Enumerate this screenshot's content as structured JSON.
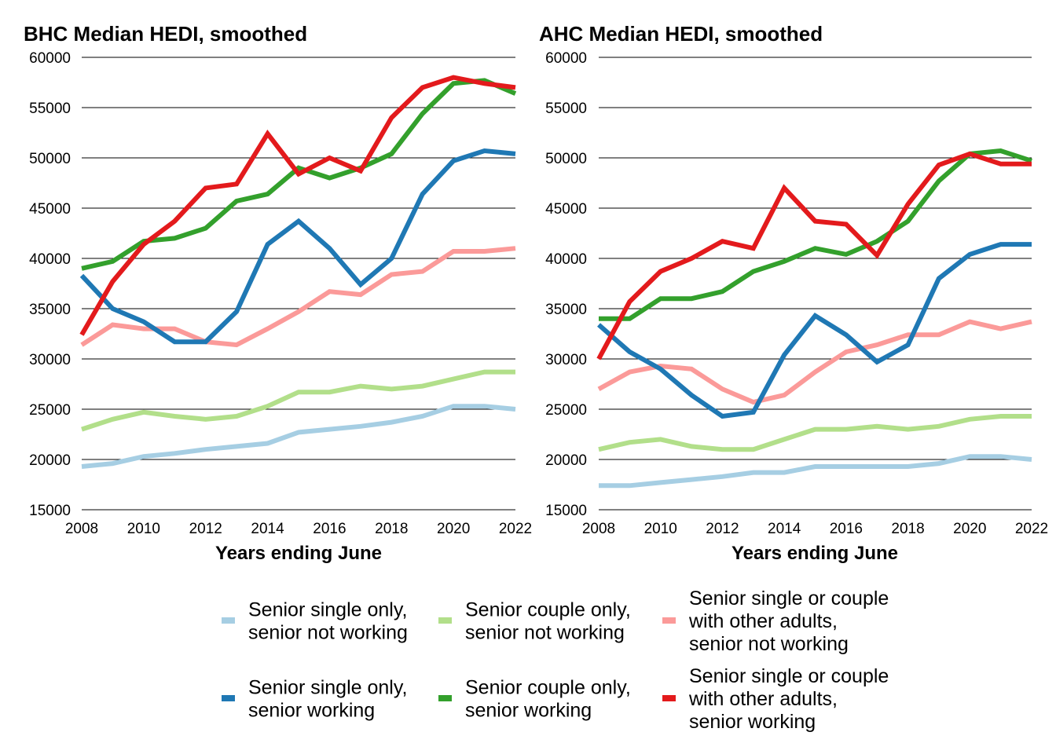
{
  "legend": [
    {
      "label_lines": [
        "Senior single only,",
        "senior not working"
      ],
      "color": "#a6cee3"
    },
    {
      "label_lines": [
        "Senior couple only,",
        "senior not working"
      ],
      "color": "#b2df8a"
    },
    {
      "label_lines": [
        "Senior single or couple",
        "with other adults,",
        "senior not working"
      ],
      "color": "#fb9a99"
    },
    {
      "label_lines": [
        "Senior single only,",
        "senior working"
      ],
      "color": "#1f78b4"
    },
    {
      "label_lines": [
        "Senior couple only,",
        "senior working"
      ],
      "color": "#33a02c"
    },
    {
      "label_lines": [
        "Senior single or couple",
        "with other adults,",
        "senior working"
      ],
      "color": "#e31a1c"
    }
  ],
  "chart_data": [
    {
      "type": "line",
      "title": "BHC Median HEDI, smoothed",
      "xlabel": "Years ending June",
      "ylabel": "",
      "xlim": [
        2008,
        2022
      ],
      "ylim": [
        15000,
        60000
      ],
      "x_ticks": [
        2008,
        2010,
        2012,
        2014,
        2016,
        2018,
        2020,
        2022
      ],
      "y_ticks": [
        15000,
        20000,
        25000,
        30000,
        35000,
        40000,
        45000,
        50000,
        55000,
        60000
      ],
      "grid": true,
      "x": [
        2008,
        2009,
        2010,
        2011,
        2012,
        2013,
        2014,
        2015,
        2016,
        2017,
        2018,
        2019,
        2020,
        2021,
        2022
      ],
      "series": [
        {
          "name": "Senior single only, senior not working",
          "color": "#a6cee3",
          "values": [
            19300,
            19600,
            20300,
            20600,
            21000,
            21300,
            21600,
            22700,
            23000,
            23300,
            23700,
            24300,
            25300,
            25300,
            25000
          ]
        },
        {
          "name": "Senior couple only, senior not working",
          "color": "#b2df8a",
          "values": [
            23000,
            24000,
            24700,
            24300,
            24000,
            24300,
            25300,
            26700,
            26700,
            27300,
            27000,
            27300,
            28000,
            28700,
            28700
          ]
        },
        {
          "name": "Senior single or couple with other adults, senior not working",
          "color": "#fb9a99",
          "values": [
            31400,
            33400,
            33000,
            33000,
            31700,
            31400,
            33000,
            34700,
            36700,
            36400,
            38400,
            38700,
            40700,
            40700,
            41000
          ]
        },
        {
          "name": "Senior single only, senior working",
          "color": "#1f78b4",
          "values": [
            38300,
            35000,
            33700,
            31700,
            31700,
            34700,
            41400,
            43700,
            41000,
            37400,
            40000,
            46400,
            49700,
            50700,
            50400
          ]
        },
        {
          "name": "Senior couple only, senior working",
          "color": "#33a02c",
          "values": [
            39000,
            39700,
            41700,
            42000,
            43000,
            45700,
            46400,
            49000,
            48000,
            49000,
            50400,
            54400,
            57400,
            57700,
            56400
          ]
        },
        {
          "name": "Senior single or couple with other adults, senior working",
          "color": "#e31a1c",
          "values": [
            32400,
            37700,
            41400,
            43700,
            47000,
            47400,
            52400,
            48400,
            50000,
            48700,
            54000,
            57000,
            58000,
            57400,
            57000
          ]
        }
      ]
    },
    {
      "type": "line",
      "title": "AHC Median HEDI, smoothed",
      "xlabel": "Years ending June",
      "ylabel": "",
      "xlim": [
        2008,
        2022
      ],
      "ylim": [
        15000,
        60000
      ],
      "x_ticks": [
        2008,
        2010,
        2012,
        2014,
        2016,
        2018,
        2020,
        2022
      ],
      "y_ticks": [
        15000,
        20000,
        25000,
        30000,
        35000,
        40000,
        45000,
        50000,
        55000,
        60000
      ],
      "grid": true,
      "x": [
        2008,
        2009,
        2010,
        2011,
        2012,
        2013,
        2014,
        2015,
        2016,
        2017,
        2018,
        2019,
        2020,
        2021,
        2022
      ],
      "series": [
        {
          "name": "Senior single only, senior not working",
          "color": "#a6cee3",
          "values": [
            17400,
            17400,
            17700,
            18000,
            18300,
            18700,
            18700,
            19300,
            19300,
            19300,
            19300,
            19600,
            20300,
            20300,
            20000
          ]
        },
        {
          "name": "Senior couple only, senior not working",
          "color": "#b2df8a",
          "values": [
            21000,
            21700,
            22000,
            21300,
            21000,
            21000,
            22000,
            23000,
            23000,
            23300,
            23000,
            23300,
            24000,
            24300,
            24300
          ]
        },
        {
          "name": "Senior single or couple with other adults, senior not working",
          "color": "#fb9a99",
          "values": [
            27000,
            28700,
            29300,
            29000,
            27000,
            25700,
            26400,
            28700,
            30700,
            31400,
            32400,
            32400,
            33700,
            33000,
            33700
          ]
        },
        {
          "name": "Senior single only, senior working",
          "color": "#1f78b4",
          "values": [
            33400,
            30700,
            29000,
            26400,
            24300,
            24700,
            30400,
            34300,
            32400,
            29700,
            31400,
            38000,
            40400,
            41400,
            41400
          ]
        },
        {
          "name": "Senior couple only, senior working",
          "color": "#33a02c",
          "values": [
            34000,
            34000,
            36000,
            36000,
            36700,
            38700,
            39700,
            41000,
            40400,
            41700,
            43700,
            47700,
            50400,
            50700,
            49700
          ]
        },
        {
          "name": "Senior single or couple with other adults, senior working",
          "color": "#e31a1c",
          "values": [
            30000,
            35700,
            38700,
            40000,
            41700,
            41000,
            47000,
            43700,
            43400,
            40300,
            45400,
            49300,
            50400,
            49400,
            49400
          ]
        }
      ]
    }
  ]
}
